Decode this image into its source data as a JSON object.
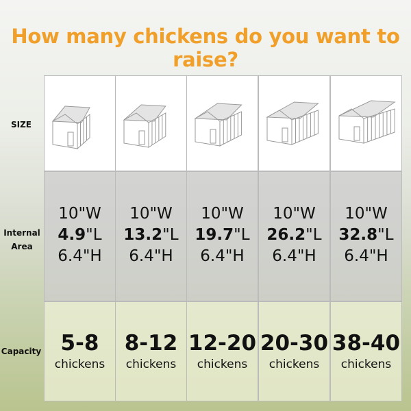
{
  "title": "How many chickens do you want to raise?",
  "rows": [
    "SIZE",
    "Internal Area",
    "Capacity"
  ],
  "columns": [
    {
      "width": "10\"W",
      "length": "4.9",
      "length_unit": "\"L",
      "height": "6.4\"H",
      "capacity": "5-8",
      "capacity_unit": "chickens"
    },
    {
      "width": "10\"W",
      "length": "13.2",
      "length_unit": "\"L",
      "height": "6.4\"H",
      "capacity": "8-12",
      "capacity_unit": "chickens"
    },
    {
      "width": "10\"W",
      "length": "19.7",
      "length_unit": "\"L",
      "height": "6.4\"H",
      "capacity": "12-20",
      "capacity_unit": "chickens"
    },
    {
      "width": "10\"W",
      "length": "26.2",
      "length_unit": "\"L",
      "height": "6.4\"H",
      "capacity": "20-30",
      "capacity_unit": "chickens"
    },
    {
      "width": "10\"W",
      "length": "32.8",
      "length_unit": "\"L",
      "height": "6.4\"H",
      "capacity": "38-40",
      "capacity_unit": "chickens"
    }
  ]
}
